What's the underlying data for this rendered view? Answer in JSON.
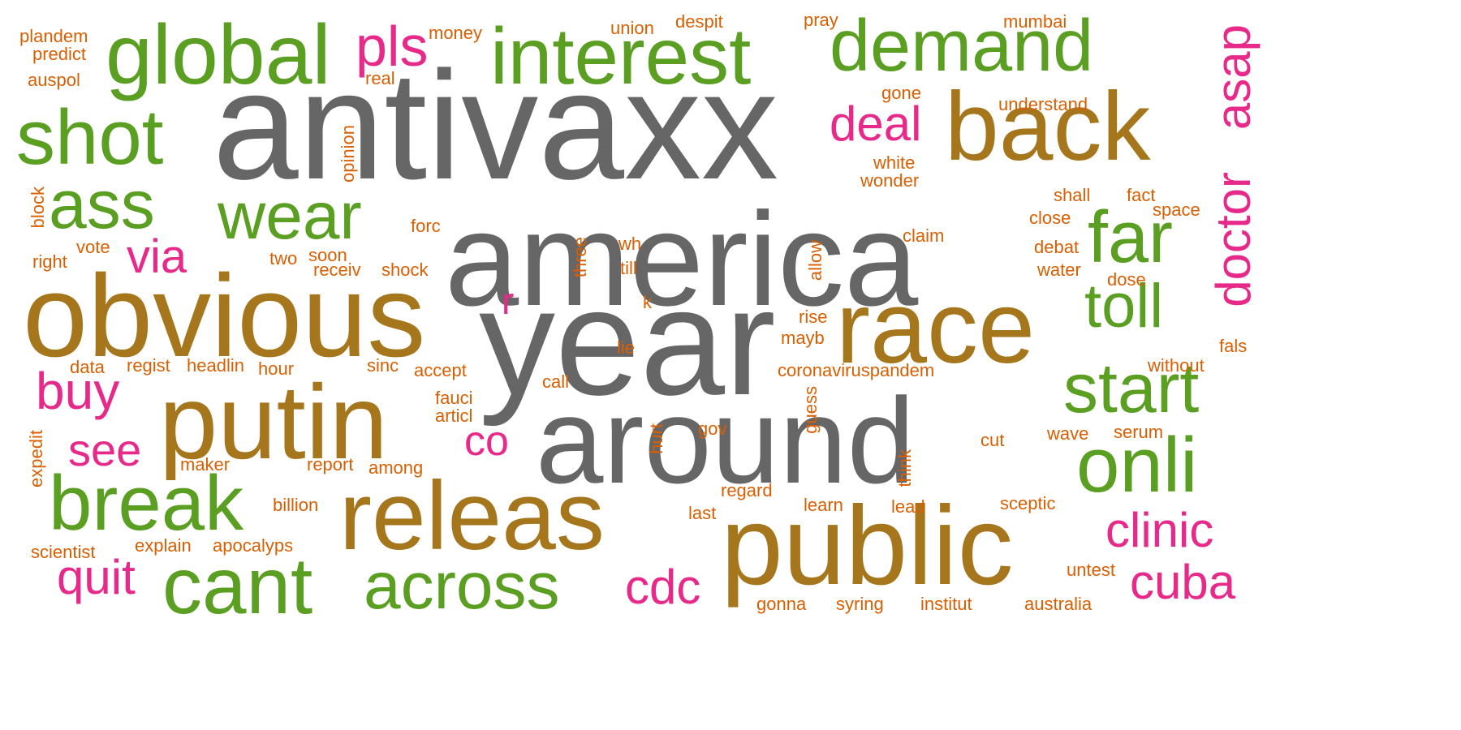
{
  "palette": {
    "gray": "#666666",
    "green": "#5a9e22",
    "brown": "#a6761d",
    "pink": "#e7298a",
    "orange": "#d95f02"
  },
  "words": [
    {
      "text": "antivaxx",
      "color": "gray"
    },
    {
      "text": "america",
      "color": "gray"
    },
    {
      "text": "year",
      "color": "gray"
    },
    {
      "text": "around",
      "color": "gray"
    },
    {
      "text": "obvious",
      "color": "brown"
    },
    {
      "text": "putin",
      "color": "brown"
    },
    {
      "text": "releas",
      "color": "brown"
    },
    {
      "text": "public",
      "color": "brown"
    },
    {
      "text": "race",
      "color": "brown"
    },
    {
      "text": "back",
      "color": "brown"
    },
    {
      "text": "global",
      "color": "green"
    },
    {
      "text": "interest",
      "color": "green"
    },
    {
      "text": "demand",
      "color": "green"
    },
    {
      "text": "shot",
      "color": "green"
    },
    {
      "text": "ass",
      "color": "green"
    },
    {
      "text": "wear",
      "color": "green"
    },
    {
      "text": "far",
      "color": "green"
    },
    {
      "text": "toll",
      "color": "green"
    },
    {
      "text": "start",
      "color": "green"
    },
    {
      "text": "onli",
      "color": "green"
    },
    {
      "text": "break",
      "color": "green"
    },
    {
      "text": "cant",
      "color": "green"
    },
    {
      "text": "across",
      "color": "green"
    },
    {
      "text": "pls",
      "color": "pink"
    },
    {
      "text": "deal",
      "color": "pink"
    },
    {
      "text": "asap",
      "color": "pink"
    },
    {
      "text": "doctor",
      "color": "pink"
    },
    {
      "text": "via",
      "color": "pink"
    },
    {
      "text": "r",
      "color": "pink"
    },
    {
      "text": "buy",
      "color": "pink"
    },
    {
      "text": "see",
      "color": "pink"
    },
    {
      "text": "co",
      "color": "pink"
    },
    {
      "text": "quit",
      "color": "pink"
    },
    {
      "text": "cdc",
      "color": "pink"
    },
    {
      "text": "clinic",
      "color": "pink"
    },
    {
      "text": "cuba",
      "color": "pink"
    },
    {
      "text": "plandem",
      "color": "orange"
    },
    {
      "text": "predict",
      "color": "orange"
    },
    {
      "text": "auspol",
      "color": "orange"
    },
    {
      "text": "money",
      "color": "orange"
    },
    {
      "text": "real",
      "color": "orange"
    },
    {
      "text": "union",
      "color": "orange"
    },
    {
      "text": "despit",
      "color": "orange"
    },
    {
      "text": "pray",
      "color": "orange"
    },
    {
      "text": "mumbai",
      "color": "orange"
    },
    {
      "text": "gone",
      "color": "orange"
    },
    {
      "text": "understand",
      "color": "orange"
    },
    {
      "text": "opinion",
      "color": "orange"
    },
    {
      "text": "white",
      "color": "orange"
    },
    {
      "text": "wonder",
      "color": "orange"
    },
    {
      "text": "block",
      "color": "orange"
    },
    {
      "text": "shall",
      "color": "orange"
    },
    {
      "text": "fact",
      "color": "orange"
    },
    {
      "text": "space",
      "color": "orange"
    },
    {
      "text": "close",
      "color": "orange"
    },
    {
      "text": "forc",
      "color": "orange"
    },
    {
      "text": "claim",
      "color": "orange"
    },
    {
      "text": "vote",
      "color": "orange"
    },
    {
      "text": "right",
      "color": "orange"
    },
    {
      "text": "two",
      "color": "orange"
    },
    {
      "text": "soon",
      "color": "orange"
    },
    {
      "text": "receiv",
      "color": "orange"
    },
    {
      "text": "shock",
      "color": "orange"
    },
    {
      "text": "three",
      "color": "orange"
    },
    {
      "text": "wh",
      "color": "orange"
    },
    {
      "text": "till",
      "color": "orange"
    },
    {
      "text": "allow",
      "color": "orange"
    },
    {
      "text": "debat",
      "color": "orange"
    },
    {
      "text": "water",
      "color": "orange"
    },
    {
      "text": "dose",
      "color": "orange"
    },
    {
      "text": "k",
      "color": "orange"
    },
    {
      "text": "rise",
      "color": "orange"
    },
    {
      "text": "mayb",
      "color": "orange"
    },
    {
      "text": "lie",
      "color": "orange"
    },
    {
      "text": "data",
      "color": "orange"
    },
    {
      "text": "regist",
      "color": "orange"
    },
    {
      "text": "headlin",
      "color": "orange"
    },
    {
      "text": "hour",
      "color": "orange"
    },
    {
      "text": "sinc",
      "color": "orange"
    },
    {
      "text": "accept",
      "color": "orange"
    },
    {
      "text": "coronaviruspandem",
      "color": "orange"
    },
    {
      "text": "without",
      "color": "orange"
    },
    {
      "text": "fals",
      "color": "orange"
    },
    {
      "text": "call",
      "color": "orange"
    },
    {
      "text": "fauci",
      "color": "orange"
    },
    {
      "text": "articl",
      "color": "orange"
    },
    {
      "text": "guess",
      "color": "orange"
    },
    {
      "text": "expedit",
      "color": "orange"
    },
    {
      "text": "hurt",
      "color": "orange"
    },
    {
      "text": "gov",
      "color": "orange"
    },
    {
      "text": "cut",
      "color": "orange"
    },
    {
      "text": "wave",
      "color": "orange"
    },
    {
      "text": "serum",
      "color": "orange"
    },
    {
      "text": "maker",
      "color": "orange"
    },
    {
      "text": "report",
      "color": "orange"
    },
    {
      "text": "among",
      "color": "orange"
    },
    {
      "text": "think",
      "color": "orange"
    },
    {
      "text": "regard",
      "color": "orange"
    },
    {
      "text": "billion",
      "color": "orange"
    },
    {
      "text": "last",
      "color": "orange"
    },
    {
      "text": "learn",
      "color": "orange"
    },
    {
      "text": "lead",
      "color": "orange"
    },
    {
      "text": "sceptic",
      "color": "orange"
    },
    {
      "text": "scientist",
      "color": "orange"
    },
    {
      "text": "explain",
      "color": "orange"
    },
    {
      "text": "apocalyps",
      "color": "orange"
    },
    {
      "text": "untest",
      "color": "orange"
    },
    {
      "text": "gonna",
      "color": "orange"
    },
    {
      "text": "syring",
      "color": "orange"
    },
    {
      "text": "institut",
      "color": "orange"
    },
    {
      "text": "australia",
      "color": "orange"
    }
  ]
}
